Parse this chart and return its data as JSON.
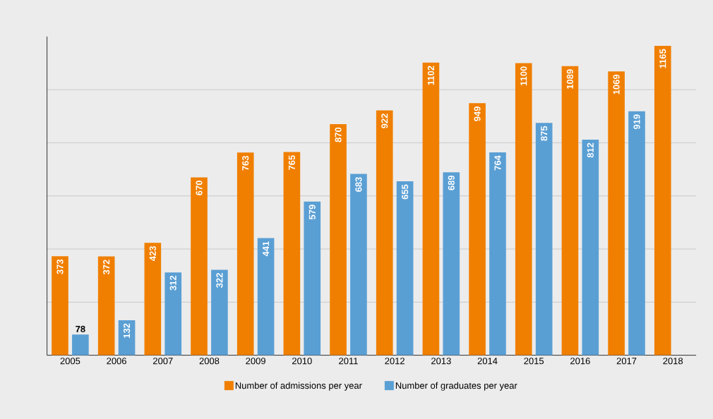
{
  "chart_data": {
    "type": "bar",
    "categories": [
      "2005",
      "2006",
      "2007",
      "2008",
      "2009",
      "2010",
      "2011",
      "2012",
      "2013",
      "2014",
      "2015",
      "2016",
      "2017",
      "2018"
    ],
    "series": [
      {
        "name": "Number of admissions per year",
        "color": "#f07f00",
        "values": [
          373,
          372,
          423,
          670,
          763,
          765,
          870,
          922,
          1102,
          949,
          1100,
          1089,
          1069,
          1165
        ]
      },
      {
        "name": "Number of graduates per year",
        "color": "#5a9fd4",
        "values": [
          78,
          132,
          312,
          322,
          441,
          579,
          683,
          655,
          689,
          764,
          875,
          812,
          919,
          null
        ]
      }
    ],
    "ylim": [
      0,
      1200
    ],
    "yticks": [
      {
        "value": 200,
        "label": null
      },
      {
        "value": 400,
        "label": null
      },
      {
        "value": 600,
        "label": null
      },
      {
        "value": 800,
        "label": null
      },
      {
        "value": 1000,
        "label": null
      }
    ],
    "grid": "y",
    "legend": "bottom",
    "data_labels": true,
    "tick_labels": "x"
  }
}
